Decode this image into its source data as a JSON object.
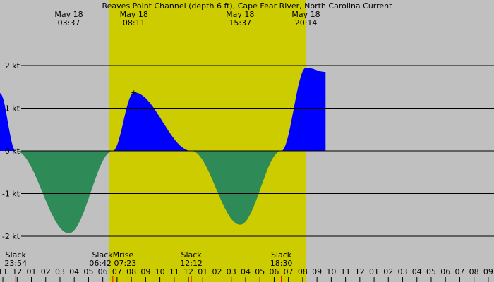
{
  "chart_data": {
    "type": "area",
    "title": "Reaves Point Channel (depth 6 ft), Cape Fear River, North Carolina Current",
    "x_unit": "hour",
    "y_unit": "kt",
    "ylim": [
      -2.3,
      2.3
    ],
    "xlim": [
      -1.2,
      33.4
    ],
    "y_ticks": [
      {
        "value": 2,
        "label": "2 kt"
      },
      {
        "value": 1,
        "label": "1 kt"
      },
      {
        "value": 0,
        "label": "0 kt"
      },
      {
        "value": -1,
        "label": "-1 kt"
      },
      {
        "value": -2,
        "label": "-2 kt"
      }
    ],
    "x_ticks": [
      {
        "value": -1,
        "label": "11"
      },
      {
        "value": 0,
        "label": "12"
      },
      {
        "value": 1,
        "label": "01"
      },
      {
        "value": 2,
        "label": "02"
      },
      {
        "value": 3,
        "label": "03"
      },
      {
        "value": 4,
        "label": "04"
      },
      {
        "value": 5,
        "label": "05"
      },
      {
        "value": 6,
        "label": "06"
      },
      {
        "value": 7,
        "label": "07"
      },
      {
        "value": 8,
        "label": "08"
      },
      {
        "value": 9,
        "label": "09"
      },
      {
        "value": 10,
        "label": "10"
      },
      {
        "value": 11,
        "label": "11"
      },
      {
        "value": 12,
        "label": "12"
      },
      {
        "value": 13,
        "label": "01"
      },
      {
        "value": 14,
        "label": "02"
      },
      {
        "value": 15,
        "label": "03"
      },
      {
        "value": 16,
        "label": "04"
      },
      {
        "value": 17,
        "label": "05"
      },
      {
        "value": 18,
        "label": "06"
      },
      {
        "value": 19,
        "label": "07"
      },
      {
        "value": 20,
        "label": "08"
      },
      {
        "value": 21,
        "label": "09"
      },
      {
        "value": 22,
        "label": "10"
      },
      {
        "value": 23,
        "label": "11"
      },
      {
        "value": 24,
        "label": "12"
      },
      {
        "value": 25,
        "label": "01"
      },
      {
        "value": 26,
        "label": "02"
      },
      {
        "value": 27,
        "label": "03"
      },
      {
        "value": 28,
        "label": "04"
      },
      {
        "value": 29,
        "label": "05"
      },
      {
        "value": 30,
        "label": "06"
      },
      {
        "value": 31,
        "label": "07"
      },
      {
        "value": 32,
        "label": "08"
      },
      {
        "value": 33,
        "label": "09"
      }
    ],
    "daylight": {
      "start": 6.42,
      "end": 20.23
    },
    "top_labels": [
      {
        "x": 3.62,
        "date": "May 18",
        "time": "03:37"
      },
      {
        "x": 8.18,
        "date": "May 18",
        "time": "08:11"
      },
      {
        "x": 15.62,
        "date": "May 18",
        "time": "15:37"
      },
      {
        "x": 20.23,
        "date": "May 18",
        "time": "20:14"
      }
    ],
    "events": [
      {
        "x": -0.1,
        "label": "Slack",
        "time": "23:54"
      },
      {
        "x": 6.7,
        "label": "SlackMrise",
        "time": "06:42 07:23"
      },
      {
        "x": 12.2,
        "label": "Slack",
        "time": "12:12"
      },
      {
        "x": 18.5,
        "label": "Slack",
        "time": "18:30"
      }
    ],
    "series": [
      {
        "kind": "flood",
        "points": [
          [
            -1.2,
            1.35
          ],
          [
            -0.1,
            0
          ],
          [
            3.62,
            -1.93
          ],
          [
            6.7,
            0
          ],
          [
            8.18,
            1.37
          ],
          [
            12.2,
            0
          ],
          [
            15.62,
            -1.73
          ],
          [
            18.5,
            0
          ],
          [
            20.23,
            1.95
          ],
          [
            21.6,
            1.85
          ]
        ]
      }
    ],
    "colors": {
      "night": "#c0c0c0",
      "day": "#cccc00",
      "flood": "#0000ff",
      "ebb": "#2e8b57",
      "gridline": "#000000",
      "marker": "#ff0000"
    }
  }
}
